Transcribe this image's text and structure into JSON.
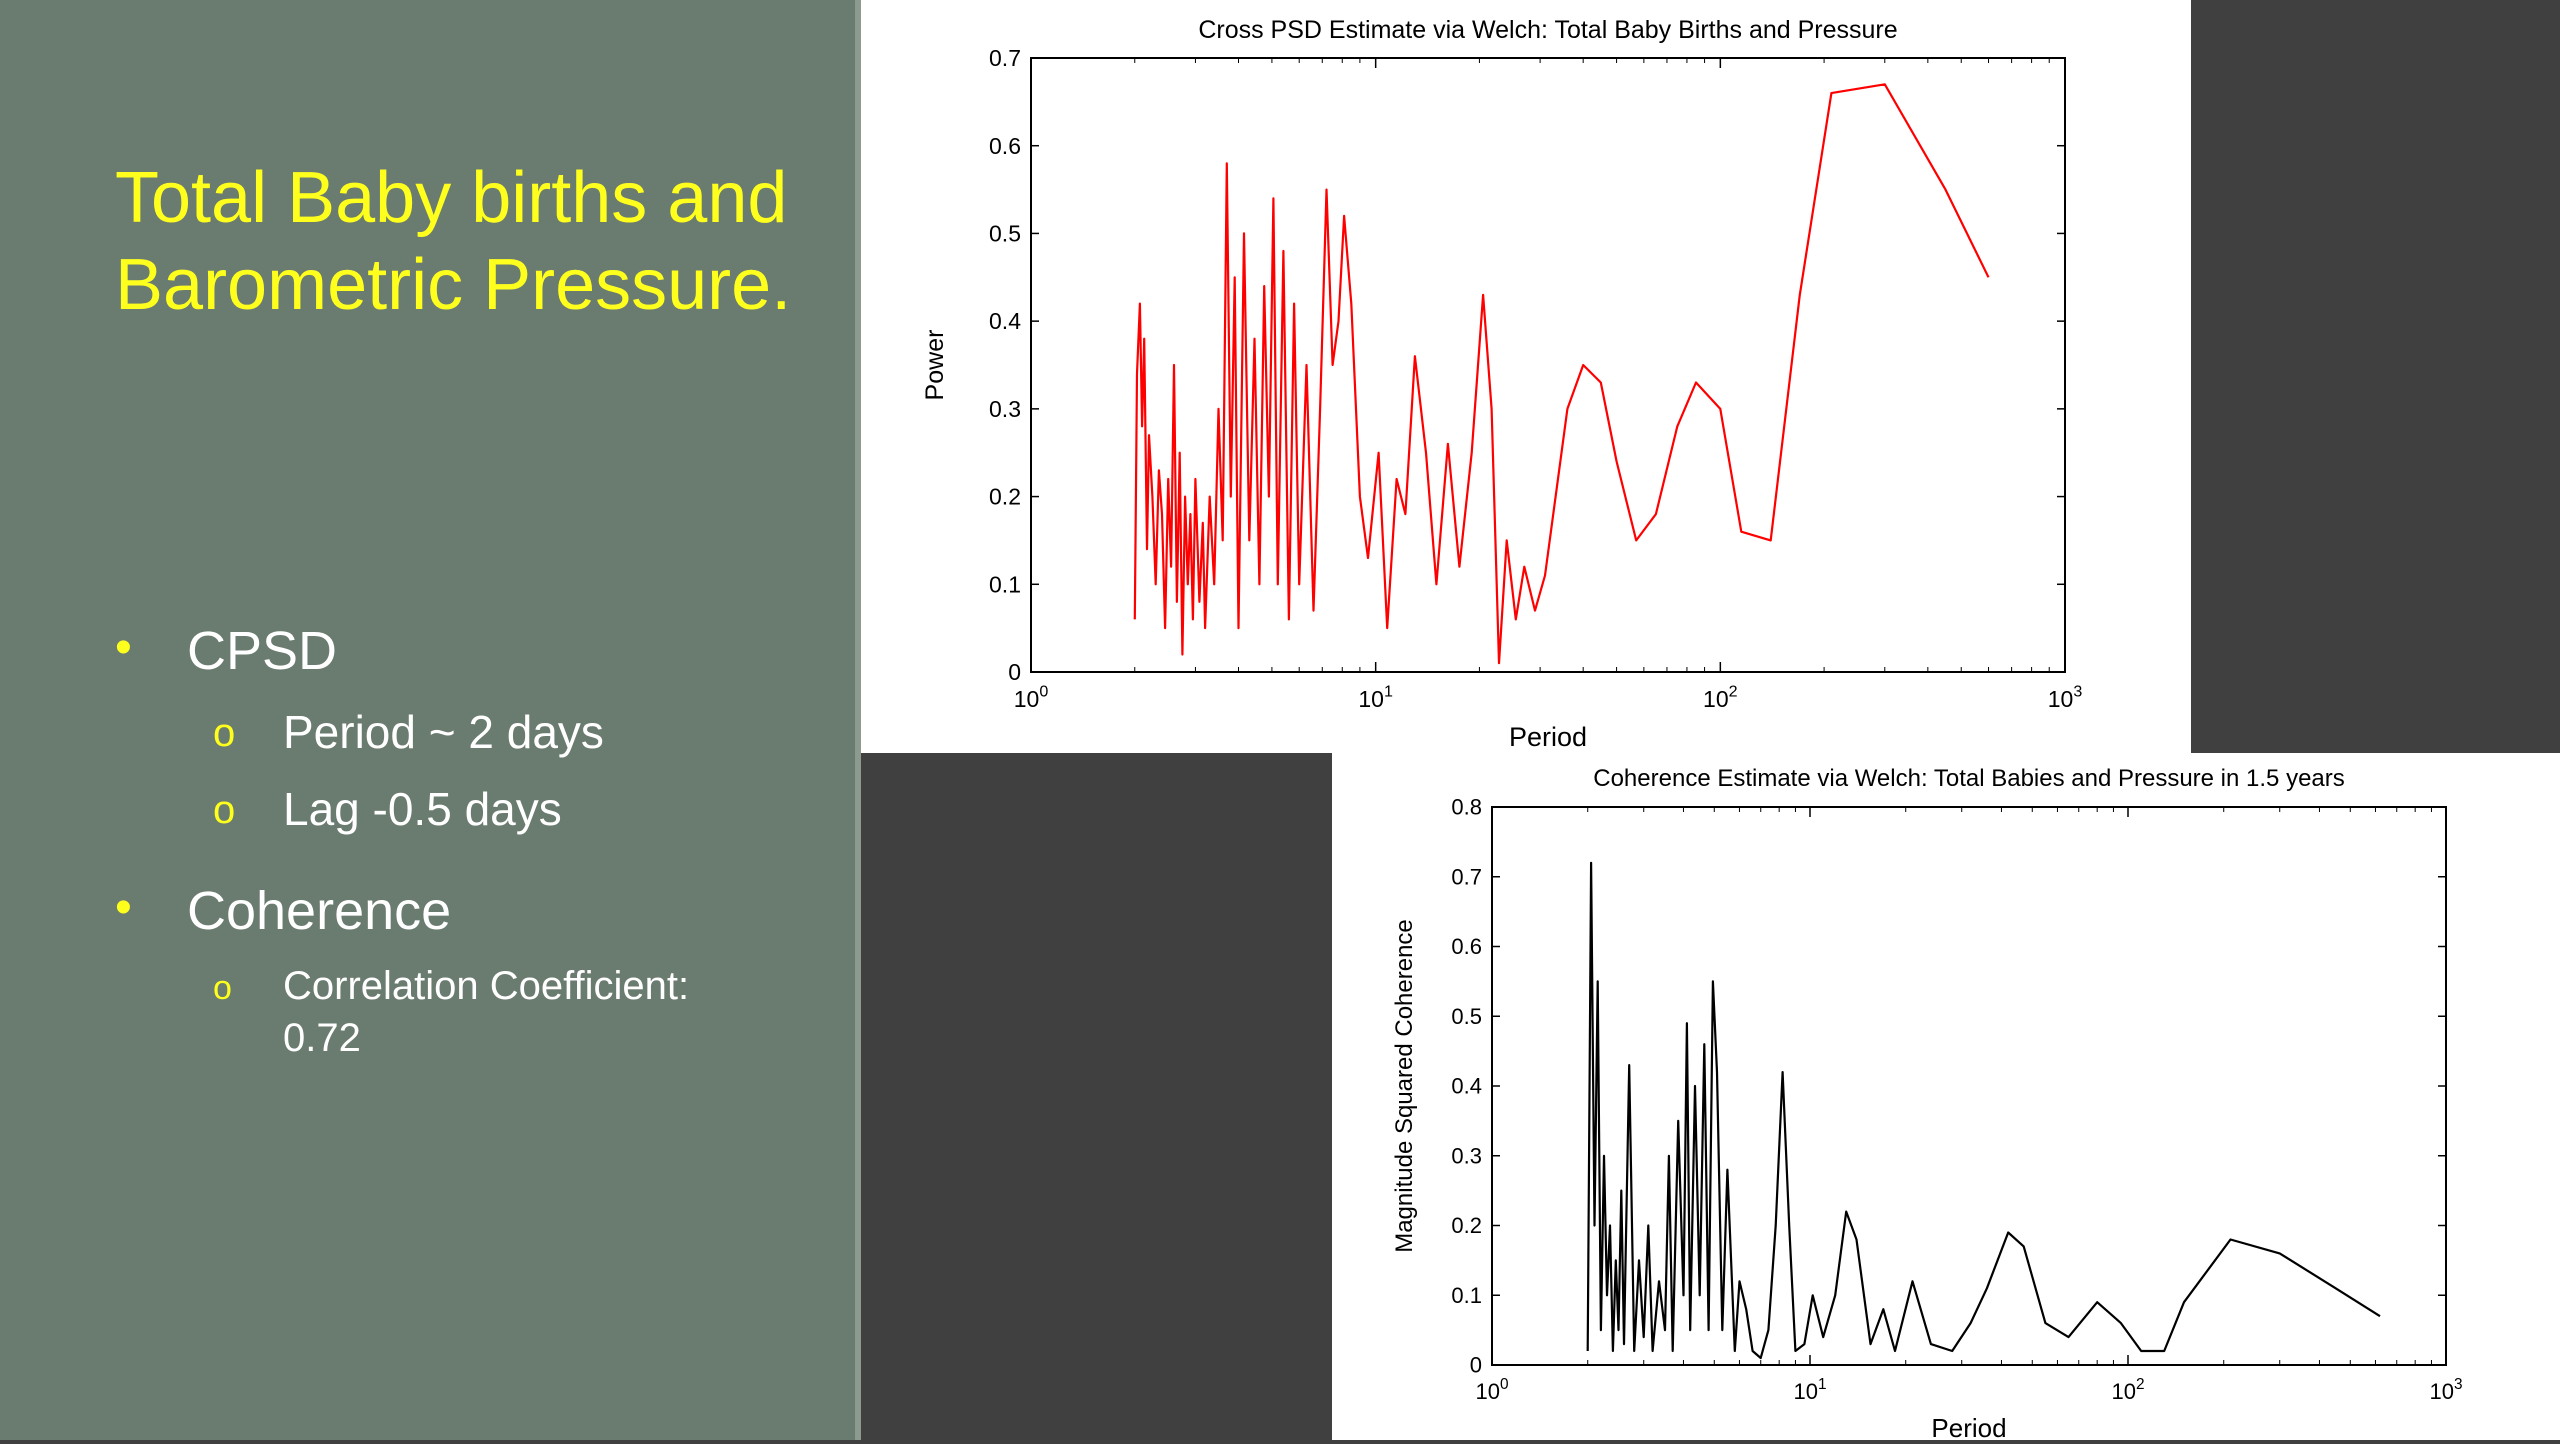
{
  "slide": {
    "title": "Total Baby births and Barometric Pressure.",
    "bullets": [
      {
        "label": "CPSD",
        "sub": [
          "Period ~ 2 days",
          "Lag -0.5 days"
        ]
      },
      {
        "label": "Coherence",
        "sub": [
          "Correlation Coefficient:",
          "0.72"
        ]
      }
    ]
  },
  "colors": {
    "title": "#ffff1e",
    "panel_bg": "#6a7b6f",
    "slide_bg": "#404040",
    "cpsd_line": "#ff0000",
    "coh_line": "#000000"
  },
  "chart_data": [
    {
      "type": "line",
      "title": "Cross PSD Estimate via Welch: Total Baby Births and Pressure",
      "xlabel": "Period",
      "ylabel": "Power",
      "xscale": "log",
      "xlim": [
        1,
        1000
      ],
      "ylim": [
        0,
        0.7
      ],
      "x_ticks": [
        "0",
        "1",
        "2",
        "3"
      ],
      "y_ticks": [
        "0",
        "0.1",
        "0.2",
        "0.3",
        "0.4",
        "0.5",
        "0.6",
        "0.7"
      ],
      "series": [
        {
          "color": "#ff0000",
          "points": [
            [
              2.0,
              0.06
            ],
            [
              2.03,
              0.34
            ],
            [
              2.07,
              0.42
            ],
            [
              2.1,
              0.28
            ],
            [
              2.13,
              0.38
            ],
            [
              2.17,
              0.14
            ],
            [
              2.2,
              0.27
            ],
            [
              2.25,
              0.2
            ],
            [
              2.3,
              0.1
            ],
            [
              2.35,
              0.23
            ],
            [
              2.4,
              0.18
            ],
            [
              2.45,
              0.05
            ],
            [
              2.5,
              0.22
            ],
            [
              2.55,
              0.12
            ],
            [
              2.6,
              0.35
            ],
            [
              2.65,
              0.08
            ],
            [
              2.7,
              0.25
            ],
            [
              2.75,
              0.02
            ],
            [
              2.8,
              0.2
            ],
            [
              2.85,
              0.1
            ],
            [
              2.9,
              0.18
            ],
            [
              2.95,
              0.06
            ],
            [
              3.0,
              0.22
            ],
            [
              3.08,
              0.08
            ],
            [
              3.15,
              0.17
            ],
            [
              3.2,
              0.05
            ],
            [
              3.3,
              0.2
            ],
            [
              3.4,
              0.1
            ],
            [
              3.5,
              0.3
            ],
            [
              3.6,
              0.15
            ],
            [
              3.7,
              0.58
            ],
            [
              3.8,
              0.2
            ],
            [
              3.9,
              0.45
            ],
            [
              4.0,
              0.05
            ],
            [
              4.15,
              0.5
            ],
            [
              4.3,
              0.15
            ],
            [
              4.45,
              0.38
            ],
            [
              4.6,
              0.1
            ],
            [
              4.75,
              0.44
            ],
            [
              4.9,
              0.2
            ],
            [
              5.05,
              0.54
            ],
            [
              5.2,
              0.1
            ],
            [
              5.4,
              0.48
            ],
            [
              5.6,
              0.06
            ],
            [
              5.8,
              0.42
            ],
            [
              6.0,
              0.1
            ],
            [
              6.3,
              0.35
            ],
            [
              6.6,
              0.07
            ],
            [
              6.9,
              0.3
            ],
            [
              7.2,
              0.55
            ],
            [
              7.5,
              0.35
            ],
            [
              7.8,
              0.4
            ],
            [
              8.1,
              0.52
            ],
            [
              8.5,
              0.42
            ],
            [
              9.0,
              0.2
            ],
            [
              9.5,
              0.13
            ],
            [
              10.2,
              0.25
            ],
            [
              10.8,
              0.05
            ],
            [
              11.5,
              0.22
            ],
            [
              12.2,
              0.18
            ],
            [
              13.0,
              0.36
            ],
            [
              14.0,
              0.25
            ],
            [
              15.0,
              0.1
            ],
            [
              16.2,
              0.26
            ],
            [
              17.5,
              0.12
            ],
            [
              19.0,
              0.25
            ],
            [
              20.5,
              0.43
            ],
            [
              21.7,
              0.3
            ],
            [
              22.8,
              0.01
            ],
            [
              24.0,
              0.15
            ],
            [
              25.5,
              0.06
            ],
            [
              27.0,
              0.12
            ],
            [
              29.0,
              0.07
            ],
            [
              31.0,
              0.11
            ],
            [
              36.0,
              0.3
            ],
            [
              40.0,
              0.35
            ],
            [
              45.0,
              0.33
            ],
            [
              50.0,
              0.24
            ],
            [
              57.0,
              0.15
            ],
            [
              65.0,
              0.18
            ],
            [
              75.0,
              0.28
            ],
            [
              85.0,
              0.33
            ],
            [
              100.0,
              0.3
            ],
            [
              115.0,
              0.16
            ],
            [
              140.0,
              0.15
            ],
            [
              170.0,
              0.43
            ],
            [
              210.0,
              0.66
            ],
            [
              300.0,
              0.67
            ],
            [
              450.0,
              0.55
            ],
            [
              600.0,
              0.45
            ]
          ]
        }
      ]
    },
    {
      "type": "line",
      "title": "Coherence Estimate via Welch: Total Babies and Pressure in 1.5 years",
      "xlabel": "Period",
      "ylabel": "Magnitude Squared Coherence",
      "xscale": "log",
      "xlim": [
        1,
        1000
      ],
      "ylim": [
        0,
        0.8
      ],
      "x_ticks": [
        "0",
        "1",
        "2",
        "3"
      ],
      "y_ticks": [
        "0",
        "0.1",
        "0.2",
        "0.3",
        "0.4",
        "0.5",
        "0.6",
        "0.7",
        "0.8"
      ],
      "series": [
        {
          "color": "#000000",
          "points": [
            [
              2.0,
              0.02
            ],
            [
              2.05,
              0.72
            ],
            [
              2.1,
              0.2
            ],
            [
              2.15,
              0.55
            ],
            [
              2.2,
              0.05
            ],
            [
              2.25,
              0.3
            ],
            [
              2.3,
              0.1
            ],
            [
              2.35,
              0.2
            ],
            [
              2.4,
              0.02
            ],
            [
              2.45,
              0.15
            ],
            [
              2.5,
              0.05
            ],
            [
              2.55,
              0.25
            ],
            [
              2.6,
              0.03
            ],
            [
              2.7,
              0.43
            ],
            [
              2.8,
              0.02
            ],
            [
              2.9,
              0.15
            ],
            [
              3.0,
              0.04
            ],
            [
              3.1,
              0.2
            ],
            [
              3.2,
              0.02
            ],
            [
              3.35,
              0.12
            ],
            [
              3.5,
              0.05
            ],
            [
              3.6,
              0.3
            ],
            [
              3.7,
              0.02
            ],
            [
              3.85,
              0.35
            ],
            [
              4.0,
              0.1
            ],
            [
              4.1,
              0.49
            ],
            [
              4.2,
              0.05
            ],
            [
              4.35,
              0.4
            ],
            [
              4.5,
              0.1
            ],
            [
              4.65,
              0.46
            ],
            [
              4.8,
              0.05
            ],
            [
              4.95,
              0.55
            ],
            [
              5.1,
              0.42
            ],
            [
              5.3,
              0.05
            ],
            [
              5.5,
              0.28
            ],
            [
              5.8,
              0.02
            ],
            [
              6.0,
              0.12
            ],
            [
              6.3,
              0.08
            ],
            [
              6.6,
              0.02
            ],
            [
              7.0,
              0.01
            ],
            [
              7.4,
              0.05
            ],
            [
              7.8,
              0.2
            ],
            [
              8.2,
              0.42
            ],
            [
              8.6,
              0.2
            ],
            [
              9.0,
              0.02
            ],
            [
              9.6,
              0.03
            ],
            [
              10.2,
              0.1
            ],
            [
              11.0,
              0.04
            ],
            [
              12.0,
              0.1
            ],
            [
              13.0,
              0.22
            ],
            [
              14.0,
              0.18
            ],
            [
              15.5,
              0.03
            ],
            [
              17.0,
              0.08
            ],
            [
              18.5,
              0.02
            ],
            [
              21.0,
              0.12
            ],
            [
              24.0,
              0.03
            ],
            [
              28.0,
              0.02
            ],
            [
              32.0,
              0.06
            ],
            [
              36.0,
              0.11
            ],
            [
              42.0,
              0.19
            ],
            [
              47.0,
              0.17
            ],
            [
              55.0,
              0.06
            ],
            [
              65.0,
              0.04
            ],
            [
              80.0,
              0.09
            ],
            [
              95.0,
              0.06
            ],
            [
              110.0,
              0.02
            ],
            [
              130.0,
              0.02
            ],
            [
              150.0,
              0.09
            ],
            [
              210.0,
              0.18
            ],
            [
              300.0,
              0.16
            ],
            [
              450.0,
              0.11
            ],
            [
              620.0,
              0.07
            ]
          ]
        }
      ]
    }
  ]
}
